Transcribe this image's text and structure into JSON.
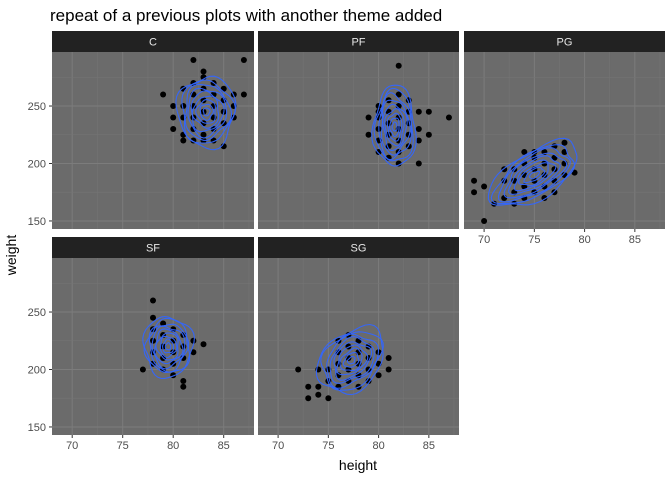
{
  "chart_data": {
    "type": "scatter",
    "title": "repeat of a previous plots with another theme added",
    "xlabel": "height",
    "ylabel": "weight",
    "xlim": [
      68,
      88
    ],
    "ylim": [
      143,
      297
    ],
    "xticks": [
      "70",
      "75",
      "80",
      "85"
    ],
    "yticks": [
      "150",
      "200",
      "250"
    ],
    "xtick_values": [
      70,
      75,
      80,
      85
    ],
    "ytick_values": [
      150,
      200,
      250
    ],
    "overlay": "2d density contours",
    "panel_background": "#6b6b6b",
    "strip_background": "#222222",
    "point_color": "#000000",
    "contour_color": "#3366ff",
    "facets": [
      {
        "label": "C",
        "points": [
          [
            79,
            260
          ],
          [
            80,
            250
          ],
          [
            80,
            240
          ],
          [
            80,
            230
          ],
          [
            81,
            265
          ],
          [
            81,
            250
          ],
          [
            81,
            240
          ],
          [
            81,
            225
          ],
          [
            81,
            220
          ],
          [
            82,
            270
          ],
          [
            82,
            260
          ],
          [
            82,
            250
          ],
          [
            82,
            240
          ],
          [
            82,
            230
          ],
          [
            82,
            220
          ],
          [
            83,
            275
          ],
          [
            83,
            265
          ],
          [
            83,
            255
          ],
          [
            83,
            245
          ],
          [
            83,
            235
          ],
          [
            83,
            225
          ],
          [
            83,
            220
          ],
          [
            84,
            270
          ],
          [
            84,
            260
          ],
          [
            84,
            250
          ],
          [
            84,
            240
          ],
          [
            84,
            230
          ],
          [
            84,
            220
          ],
          [
            85,
            265
          ],
          [
            85,
            255
          ],
          [
            85,
            245
          ],
          [
            85,
            235
          ],
          [
            85,
            215
          ],
          [
            86,
            260
          ],
          [
            86,
            250
          ],
          [
            87,
            290
          ],
          [
            87,
            260
          ],
          [
            82,
            290
          ],
          [
            86,
            240
          ],
          [
            83,
            280
          ]
        ],
        "density": {
          "cx": 83.3,
          "cy": 245,
          "sx": 1.3,
          "sy": 14,
          "rho": 0
        }
      },
      {
        "label": "PF",
        "points": [
          [
            80,
            210
          ],
          [
            80,
            220
          ],
          [
            80,
            230
          ],
          [
            80,
            240
          ],
          [
            80,
            245
          ],
          [
            80,
            250
          ],
          [
            81,
            205
          ],
          [
            81,
            215
          ],
          [
            81,
            225
          ],
          [
            81,
            235
          ],
          [
            81,
            245
          ],
          [
            81,
            255
          ],
          [
            82,
            200
          ],
          [
            82,
            210
          ],
          [
            82,
            220
          ],
          [
            82,
            230
          ],
          [
            82,
            240
          ],
          [
            82,
            250
          ],
          [
            82,
            260
          ],
          [
            82,
            285
          ],
          [
            83,
            215
          ],
          [
            83,
            225
          ],
          [
            83,
            235
          ],
          [
            83,
            245
          ],
          [
            83,
            255
          ],
          [
            84,
            220
          ],
          [
            84,
            230
          ],
          [
            84,
            245
          ],
          [
            84,
            200
          ],
          [
            85,
            225
          ],
          [
            85,
            245
          ],
          [
            87,
            240
          ],
          [
            79,
            225
          ],
          [
            79,
            240
          ]
        ],
        "density": {
          "cx": 81.6,
          "cy": 232,
          "sx": 0.95,
          "sy": 16,
          "rho": 0
        }
      },
      {
        "label": "PG",
        "points": [
          [
            69,
            185
          ],
          [
            69,
            175
          ],
          [
            70,
            150
          ],
          [
            70,
            180
          ],
          [
            71,
            165
          ],
          [
            72,
            170
          ],
          [
            72,
            185
          ],
          [
            72,
            195
          ],
          [
            73,
            165
          ],
          [
            73,
            175
          ],
          [
            73,
            185
          ],
          [
            73,
            195
          ],
          [
            74,
            170
          ],
          [
            74,
            180
          ],
          [
            74,
            190
          ],
          [
            74,
            200
          ],
          [
            75,
            175
          ],
          [
            75,
            185
          ],
          [
            75,
            195
          ],
          [
            75,
            205
          ],
          [
            75,
            210
          ],
          [
            76,
            180
          ],
          [
            76,
            190
          ],
          [
            76,
            200
          ],
          [
            76,
            210
          ],
          [
            77,
            185
          ],
          [
            77,
            195
          ],
          [
            77,
            205
          ],
          [
            77,
            215
          ],
          [
            78,
            190
          ],
          [
            78,
            200
          ],
          [
            78,
            210
          ],
          [
            78,
            218
          ],
          [
            79,
            192
          ],
          [
            76,
            170
          ],
          [
            77,
            175
          ],
          [
            74,
            210
          ]
        ],
        "density": {
          "cx": 75.0,
          "cy": 190,
          "sx": 2.0,
          "sy": 13,
          "rho": 0.6
        }
      },
      {
        "label": "SF",
        "points": [
          [
            77,
            200
          ],
          [
            78,
            260
          ],
          [
            78,
            245
          ],
          [
            78,
            235
          ],
          [
            78,
            225
          ],
          [
            78,
            215
          ],
          [
            78,
            205
          ],
          [
            79,
            240
          ],
          [
            79,
            230
          ],
          [
            79,
            220
          ],
          [
            79,
            210
          ],
          [
            79,
            200
          ],
          [
            80,
            235
          ],
          [
            80,
            225
          ],
          [
            80,
            215
          ],
          [
            80,
            205
          ],
          [
            80,
            195
          ],
          [
            81,
            230
          ],
          [
            81,
            220
          ],
          [
            81,
            210
          ],
          [
            81,
            190
          ],
          [
            81,
            185
          ],
          [
            82,
            225
          ],
          [
            82,
            215
          ],
          [
            83,
            222
          ]
        ],
        "density": {
          "cx": 79.5,
          "cy": 220,
          "sx": 1.1,
          "sy": 12,
          "rho": 0
        }
      },
      {
        "label": "SG",
        "points": [
          [
            72,
            200
          ],
          [
            73,
            185
          ],
          [
            73,
            175
          ],
          [
            74,
            185
          ],
          [
            74,
            178
          ],
          [
            75,
            175
          ],
          [
            75,
            190
          ],
          [
            75,
            200
          ],
          [
            76,
            185
          ],
          [
            76,
            195
          ],
          [
            76,
            205
          ],
          [
            76,
            215
          ],
          [
            76,
            225
          ],
          [
            77,
            190
          ],
          [
            77,
            200
          ],
          [
            77,
            210
          ],
          [
            77,
            220
          ],
          [
            77,
            230
          ],
          [
            78,
            185
          ],
          [
            78,
            195
          ],
          [
            78,
            205
          ],
          [
            78,
            215
          ],
          [
            78,
            225
          ],
          [
            79,
            190
          ],
          [
            79,
            200
          ],
          [
            79,
            210
          ],
          [
            79,
            220
          ],
          [
            80,
            195
          ],
          [
            80,
            205
          ],
          [
            80,
            215
          ],
          [
            81,
            200
          ],
          [
            81,
            210
          ],
          [
            74,
            200
          ]
        ],
        "density": {
          "cx": 77.3,
          "cy": 208,
          "sx": 1.5,
          "sy": 13,
          "rho": 0.3
        }
      }
    ]
  }
}
